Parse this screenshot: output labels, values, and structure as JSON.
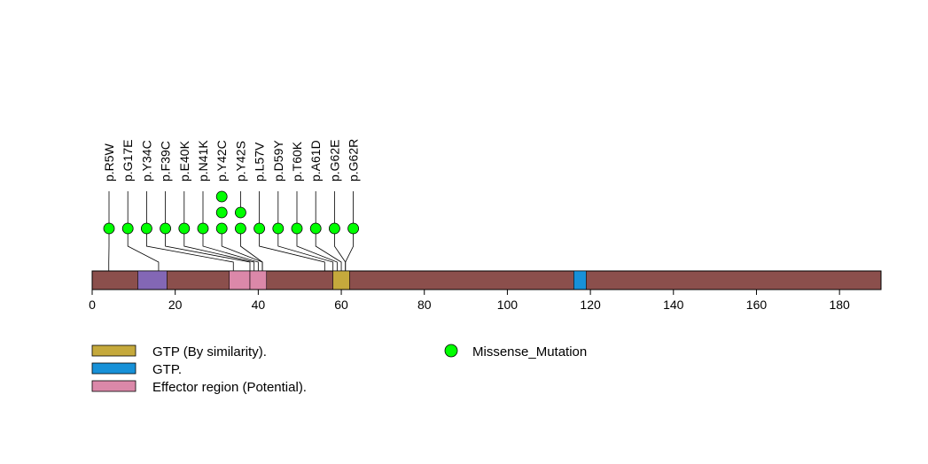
{
  "chart_data": {
    "type": "lollipop",
    "title": "",
    "xlabel": "",
    "ylabel": "",
    "xlim": [
      0,
      190
    ],
    "x_ticks": [
      0,
      20,
      40,
      60,
      80,
      100,
      120,
      140,
      160,
      180
    ],
    "protein_length": 190,
    "colors": {
      "backbone": "#8b4f4c",
      "mutation_fill": "#00ff00",
      "lines": "#000000"
    },
    "domains": [
      {
        "start": 11,
        "end": 18,
        "color": "#8367b5"
      },
      {
        "start": 33,
        "end": 38,
        "color": "#db88a9"
      },
      {
        "start": 38,
        "end": 42,
        "color": "#db88a9"
      },
      {
        "start": 58,
        "end": 62,
        "color": "#c5a93c"
      },
      {
        "start": 116,
        "end": 119,
        "color": "#1791d8"
      }
    ],
    "mutations": [
      {
        "label": "p.R5W",
        "position": 4,
        "count": 1
      },
      {
        "label": "p.G17E",
        "position": 16,
        "count": 1
      },
      {
        "label": "p.Y34C",
        "position": 34,
        "count": 1
      },
      {
        "label": "p.F39C",
        "position": 38,
        "count": 1
      },
      {
        "label": "p.E40K",
        "position": 39,
        "count": 1
      },
      {
        "label": "p.N41K",
        "position": 40,
        "count": 1
      },
      {
        "label": "p.Y42C",
        "position": 41,
        "count": 3
      },
      {
        "label": "p.Y42S",
        "position": 41,
        "count": 2
      },
      {
        "label": "p.L57V",
        "position": 56,
        "count": 1
      },
      {
        "label": "p.D59Y",
        "position": 58,
        "count": 1
      },
      {
        "label": "p.T60K",
        "position": 59,
        "count": 1
      },
      {
        "label": "p.A61D",
        "position": 60,
        "count": 1
      },
      {
        "label": "p.G62E",
        "position": 61,
        "count": 1
      },
      {
        "label": "p.G62R",
        "position": 61,
        "count": 1
      }
    ],
    "legend": {
      "regions": [
        {
          "label": "GTP (By similarity).",
          "color": "#c5a93c"
        },
        {
          "label": "GTP.",
          "color": "#1791d8"
        },
        {
          "label": "Effector region (Potential).",
          "color": "#db88a9"
        }
      ],
      "markers": [
        {
          "label": "Missense_Mutation",
          "color": "#00ff00"
        }
      ]
    }
  }
}
